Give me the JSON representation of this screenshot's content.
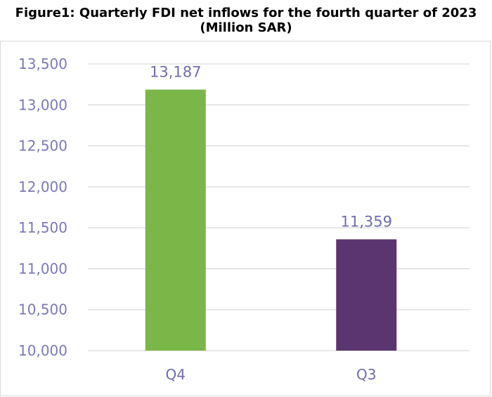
{
  "chart_data": {
    "type": "bar",
    "title": "Figure1: Quarterly FDI net inflows for the fourth quarter of 2023",
    "subtitle": "(Million SAR)",
    "categories": [
      "Q4",
      "Q3"
    ],
    "values": [
      13187,
      11359
    ],
    "value_labels": [
      "13,187",
      "11,359"
    ],
    "bar_colors": [
      "#7ab648",
      "#5b3570"
    ],
    "ylim": [
      10000,
      13500
    ],
    "yticks": [
      10000,
      10500,
      11000,
      11500,
      12000,
      12500,
      13000,
      13500
    ],
    "ytick_labels": [
      "10,000",
      "10,500",
      "11,000",
      "11,500",
      "12,000",
      "12,500",
      "13,000",
      "13,500"
    ],
    "xlabel": "",
    "ylabel": "",
    "grid": true,
    "legend": "none"
  },
  "colors": {
    "gridline": "#d9d9d9",
    "tick_text": "#7b78b8",
    "label_text": "#6f6bb0"
  }
}
